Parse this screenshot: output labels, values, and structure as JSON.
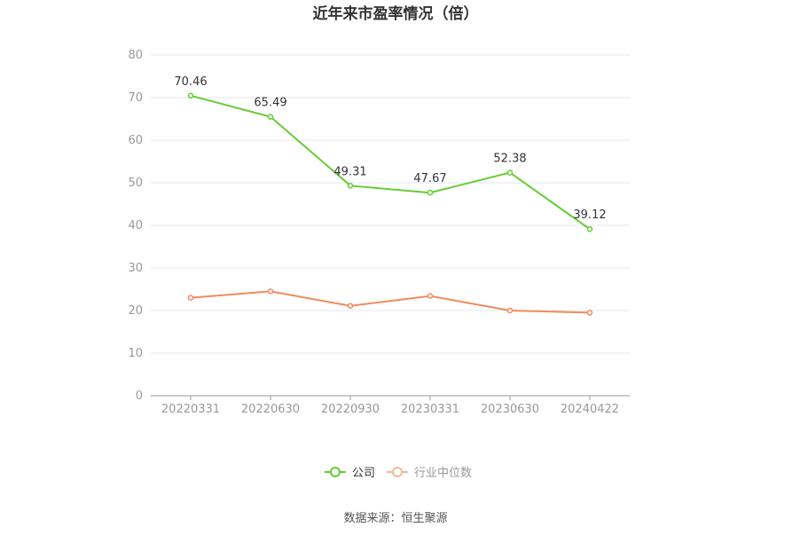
{
  "chart_data": {
    "type": "line",
    "title": "近年来市盈率情况（倍）",
    "categories": [
      "20220331",
      "20220630",
      "20220930",
      "20230331",
      "20230630",
      "20240422"
    ],
    "series": [
      {
        "name": "公司",
        "color": "#66cc33",
        "values": [
          70.46,
          65.49,
          49.31,
          47.67,
          52.38,
          39.12
        ],
        "show_labels": true
      },
      {
        "name": "行业中位数",
        "color": "#f08b5c",
        "values": [
          23.0,
          24.5,
          21.1,
          23.4,
          20.0,
          19.5
        ],
        "show_labels": false
      }
    ],
    "ylim": [
      0,
      80
    ],
    "yticks": [
      0,
      10,
      20,
      30,
      40,
      50,
      60,
      70,
      80
    ],
    "grid": true,
    "legend": "bottom",
    "source": "数据来源：恒生聚源"
  }
}
